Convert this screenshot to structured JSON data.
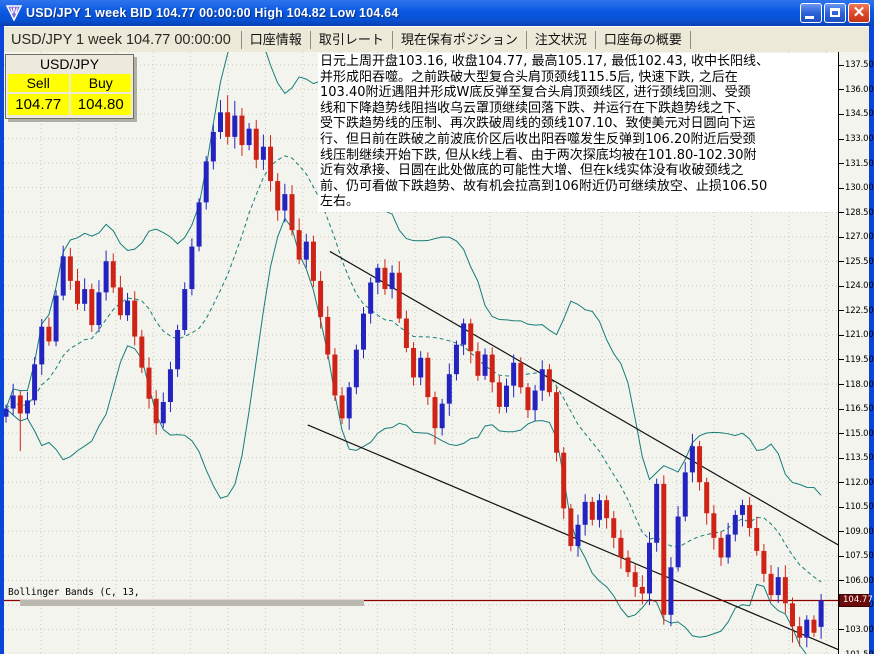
{
  "window": {
    "title": "USD/JPY 1 week BID 104.77 00:00:00 High 104.82 Low 104.64"
  },
  "toolbar": {
    "symbol_label": "USD/JPY 1 week 104.77 00:00:00",
    "tabs": [
      {
        "label": "口座情報"
      },
      {
        "label": "取引レート"
      },
      {
        "label": "現在保有ポジション"
      },
      {
        "label": "注文状況"
      },
      {
        "label": "口座毎の概要"
      }
    ]
  },
  "quote_box": {
    "symbol": "USD/JPY",
    "sell_label": "Sell",
    "buy_label": "Buy",
    "sell_price": "104.77",
    "buy_price": "104.80"
  },
  "annotation": {
    "lines": [
      "日元上周开盘103.16, 收盘104.77, 最高105.17, 最低102.43, 收中长阳线、",
      "并形成阳吞噬。之前跌破大型复合头肩顶颈线115.5后, 快速下跌, 之后在",
      "103.40附近遇阻并形成W底反弹至复合头肩顶颈线区, 进行颈线回测、受颈",
      "线和下降趋势线阻挡收乌云罩顶继续回落下跌、并运行在下跌趋势线之下、",
      "受下跌趋势线的压制、再次跌破周线的颈线107.10、致使美元对日圆向下运",
      "行、但日前在跌破之前波底价区后收出阳吞噬发生反弹到106.20附近后受颈",
      "线压制继续开始下跌, 但从k线上看、由于两次探底均被在101.80-102.30附",
      "近有效承接、日圆在此处做底的可能性大增、但在k线实体没有收破颈线之",
      "前、仍可看做下跌趋势、故有机会拉高到106附近仍可继续放空、止损106.50",
      "左右。"
    ]
  },
  "indicator_label": "Bollinger Bands (C, 13,",
  "chart_data": {
    "type": "candlestick",
    "symbol": "USD/JPY",
    "timeframe": "1 week",
    "bid": 104.77,
    "session_high": 104.82,
    "session_low": 104.64,
    "price_axis": {
      "min": 101.5,
      "max": 137.5,
      "step": 1.5
    },
    "current_price": 104.77,
    "current_price_label": "104.77",
    "bollinger": {
      "source": "Close",
      "period": 13,
      "deviations": 2
    },
    "first_open": 116.0,
    "closes": [
      116.5,
      117.3,
      116.2,
      117.0,
      119.2,
      121.5,
      120.6,
      123.4,
      125.8,
      124.3,
      122.9,
      123.8,
      121.6,
      123.6,
      125.5,
      123.9,
      122.2,
      123.1,
      120.9,
      119.0,
      117.1,
      115.6,
      116.9,
      118.9,
      121.3,
      123.8,
      126.4,
      129.1,
      131.6,
      133.4,
      134.6,
      133.1,
      134.4,
      132.6,
      133.6,
      131.7,
      132.5,
      130.4,
      128.6,
      129.6,
      127.4,
      125.6,
      126.7,
      124.3,
      122.1,
      119.8,
      117.3,
      115.9,
      117.8,
      120.1,
      122.3,
      124.2,
      125.1,
      123.8,
      124.8,
      122.0,
      120.2,
      118.4,
      119.6,
      117.2,
      115.3,
      116.8,
      118.6,
      120.4,
      121.7,
      120.0,
      118.5,
      119.8,
      118.1,
      116.6,
      117.9,
      119.3,
      117.8,
      116.4,
      117.6,
      118.9,
      117.5,
      113.8,
      110.4,
      108.1,
      109.4,
      110.8,
      109.7,
      110.9,
      109.8,
      108.6,
      107.4,
      106.5,
      105.6,
      105.2,
      108.3,
      111.9,
      103.9,
      106.8,
      109.9,
      112.6,
      114.2,
      112.0,
      110.1,
      108.6,
      107.4,
      108.8,
      110.0,
      110.6,
      109.2,
      107.8,
      106.4,
      105.1,
      106.2,
      104.6,
      103.2,
      102.5,
      103.6,
      102.8,
      104.77
    ],
    "wick_overrides": {
      "2": {
        "l": 113.9
      },
      "8": {
        "h": 126.45
      },
      "21": {
        "l": 114.9
      },
      "31": {
        "h": 135.65
      },
      "32": {
        "h": 135.3
      },
      "47": {
        "l": 115.55
      },
      "52": {
        "h": 125.35
      },
      "55": {
        "h": 125.5
      },
      "60": {
        "l": 114.3
      },
      "77": {
        "h": 117.8
      },
      "92": {
        "l": 103.3
      },
      "96": {
        "h": 114.95
      },
      "110": {
        "l": 102.2
      },
      "111": {
        "l": 101.96
      }
    },
    "last_candle": {
      "open": 103.16,
      "high": 105.17,
      "low": 102.43,
      "close": 104.77
    },
    "trendlines": [
      {
        "i1": 45.3,
        "p1": 126.1,
        "i2": 121.4,
        "p2": 106.9
      },
      {
        "i1": 42.2,
        "p1": 115.5,
        "i2": 121.4,
        "p2": 100.85
      }
    ],
    "colors": {
      "up": "#2323c0",
      "down": "#ce2418",
      "bands": "#157d78",
      "trend": "#111111",
      "current_price_line": "#8b0000",
      "grid": "#c9c9c0"
    }
  }
}
